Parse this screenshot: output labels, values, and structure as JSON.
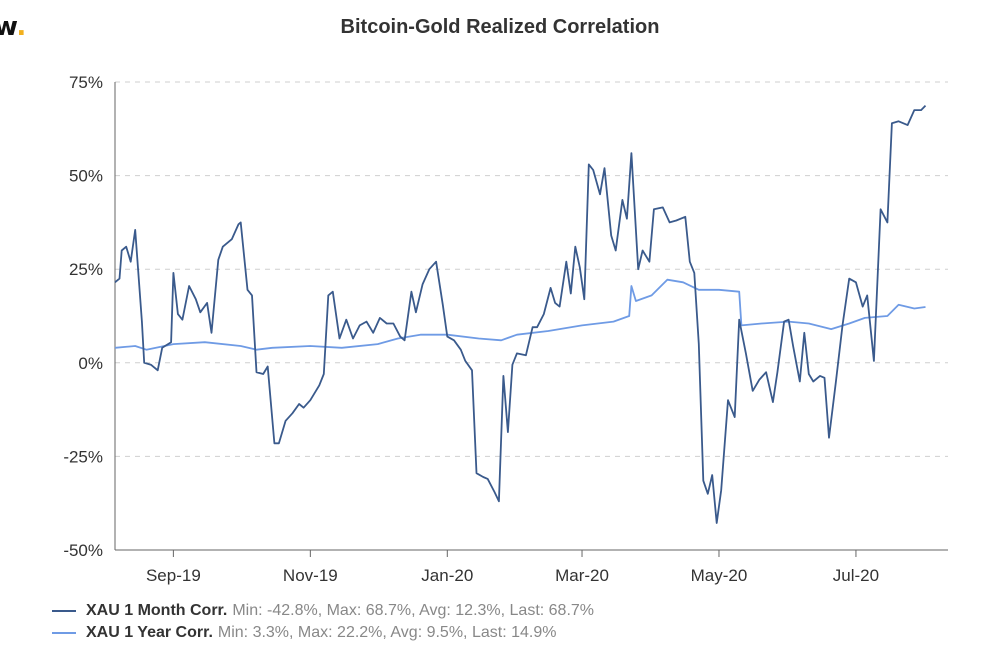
{
  "logo": {
    "text": "w",
    "dot": "."
  },
  "chart_data": {
    "type": "line",
    "title": "Bitcoin-Gold Realized Correlation",
    "ylim": [
      -50,
      75
    ],
    "y_ticks": [
      "75%",
      "50%",
      "25%",
      "0%",
      "-25%",
      "-50%"
    ],
    "y_tick_values": [
      75,
      50,
      25,
      0,
      -25,
      -50
    ],
    "x_range": [
      "2019-08-06",
      "2020-08-11"
    ],
    "x_ticks": [
      {
        "label": "Sep-19",
        "date": "2019-09-01"
      },
      {
        "label": "Nov-19",
        "date": "2019-11-01"
      },
      {
        "label": "Jan-20",
        "date": "2020-01-01"
      },
      {
        "label": "Mar-20",
        "date": "2020-03-01"
      },
      {
        "label": "May-20",
        "date": "2020-05-01"
      },
      {
        "label": "Jul-20",
        "date": "2020-07-01"
      }
    ],
    "grid": "horizontal dashed",
    "legend_position": "bottom-left",
    "series": [
      {
        "name": "XAU 1 Month Corr.",
        "stats": "Min: -42.8%, Max: 68.7%, Avg: 12.3%, Last: 68.7%",
        "color": "#3a5a8c",
        "points": [
          [
            "2019-08-06",
            21.5
          ],
          [
            "2019-08-08",
            22.5
          ],
          [
            "2019-08-09",
            30.0
          ],
          [
            "2019-08-11",
            31.0
          ],
          [
            "2019-08-13",
            27.0
          ],
          [
            "2019-08-15",
            35.5
          ],
          [
            "2019-08-18",
            11.0
          ],
          [
            "2019-08-19",
            0.0
          ],
          [
            "2019-08-22",
            -0.5
          ],
          [
            "2019-08-25",
            -2.0
          ],
          [
            "2019-08-27",
            4.0
          ],
          [
            "2019-08-31",
            5.5
          ],
          [
            "2019-09-01",
            24.0
          ],
          [
            "2019-09-03",
            13.0
          ],
          [
            "2019-09-05",
            11.5
          ],
          [
            "2019-09-08",
            20.5
          ],
          [
            "2019-09-11",
            17.0
          ],
          [
            "2019-09-13",
            13.5
          ],
          [
            "2019-09-16",
            16.0
          ],
          [
            "2019-09-18",
            8.0
          ],
          [
            "2019-09-21",
            27.5
          ],
          [
            "2019-09-23",
            31.0
          ],
          [
            "2019-09-27",
            33.0
          ],
          [
            "2019-09-30",
            37.0
          ],
          [
            "2019-10-01",
            37.5
          ],
          [
            "2019-10-04",
            19.5
          ],
          [
            "2019-10-06",
            18.0
          ],
          [
            "2019-10-08",
            -2.5
          ],
          [
            "2019-10-11",
            -3.0
          ],
          [
            "2019-10-13",
            -1.0
          ],
          [
            "2019-10-16",
            -21.5
          ],
          [
            "2019-10-18",
            -21.5
          ],
          [
            "2019-10-21",
            -15.5
          ],
          [
            "2019-10-24",
            -13.5
          ],
          [
            "2019-10-27",
            -11.0
          ],
          [
            "2019-10-29",
            -12.0
          ],
          [
            "2019-11-01",
            -10.0
          ],
          [
            "2019-11-05",
            -6.0
          ],
          [
            "2019-11-07",
            -3.0
          ],
          [
            "2019-11-09",
            18.0
          ],
          [
            "2019-11-11",
            19.0
          ],
          [
            "2019-11-14",
            6.5
          ],
          [
            "2019-11-17",
            11.5
          ],
          [
            "2019-11-20",
            6.5
          ],
          [
            "2019-11-23",
            10.0
          ],
          [
            "2019-11-26",
            11.0
          ],
          [
            "2019-11-29",
            8.0
          ],
          [
            "2019-12-02",
            12.0
          ],
          [
            "2019-12-05",
            10.5
          ],
          [
            "2019-12-08",
            10.5
          ],
          [
            "2019-12-11",
            7.0
          ],
          [
            "2019-12-13",
            6.0
          ],
          [
            "2019-12-16",
            19.0
          ],
          [
            "2019-12-18",
            13.5
          ],
          [
            "2019-12-21",
            21.0
          ],
          [
            "2019-12-24",
            25.0
          ],
          [
            "2019-12-27",
            27.0
          ],
          [
            "2019-12-30",
            15.5
          ],
          [
            "2020-01-01",
            7.0
          ],
          [
            "2020-01-04",
            6.0
          ],
          [
            "2020-01-07",
            3.5
          ],
          [
            "2020-01-09",
            0.5
          ],
          [
            "2020-01-12",
            -2.0
          ],
          [
            "2020-01-14",
            -29.5
          ],
          [
            "2020-01-17",
            -30.5
          ],
          [
            "2020-01-19",
            -31.0
          ],
          [
            "2020-01-22",
            -34.5
          ],
          [
            "2020-01-24",
            -37.0
          ],
          [
            "2020-01-26",
            -3.5
          ],
          [
            "2020-01-28",
            -18.5
          ],
          [
            "2020-01-30",
            -0.5
          ],
          [
            "2020-02-01",
            2.5
          ],
          [
            "2020-02-05",
            2.0
          ],
          [
            "2020-02-08",
            9.5
          ],
          [
            "2020-02-10",
            9.5
          ],
          [
            "2020-02-13",
            13.0
          ],
          [
            "2020-02-16",
            20.0
          ],
          [
            "2020-02-18",
            16.0
          ],
          [
            "2020-02-20",
            15.0
          ],
          [
            "2020-02-23",
            27.0
          ],
          [
            "2020-02-25",
            18.5
          ],
          [
            "2020-02-27",
            31.0
          ],
          [
            "2020-02-29",
            25.5
          ],
          [
            "2020-03-02",
            17.0
          ],
          [
            "2020-03-04",
            53.0
          ],
          [
            "2020-03-06",
            51.5
          ],
          [
            "2020-03-09",
            45.0
          ],
          [
            "2020-03-11",
            52.0
          ],
          [
            "2020-03-14",
            34.0
          ],
          [
            "2020-03-16",
            30.0
          ],
          [
            "2020-03-19",
            43.5
          ],
          [
            "2020-03-21",
            38.5
          ],
          [
            "2020-03-23",
            56.0
          ],
          [
            "2020-03-26",
            25.0
          ],
          [
            "2020-03-28",
            30.0
          ],
          [
            "2020-03-31",
            27.0
          ],
          [
            "2020-04-02",
            41.0
          ],
          [
            "2020-04-06",
            41.5
          ],
          [
            "2020-04-09",
            37.5
          ],
          [
            "2020-04-12",
            38.0
          ],
          [
            "2020-04-16",
            39.0
          ],
          [
            "2020-04-18",
            27.0
          ],
          [
            "2020-04-20",
            24.0
          ],
          [
            "2020-04-22",
            5.0
          ],
          [
            "2020-04-24",
            -31.5
          ],
          [
            "2020-04-26",
            -35.0
          ],
          [
            "2020-04-28",
            -30.0
          ],
          [
            "2020-04-30",
            -42.8
          ],
          [
            "2020-05-02",
            -34.0
          ],
          [
            "2020-05-05",
            -10.0
          ],
          [
            "2020-05-08",
            -14.5
          ],
          [
            "2020-05-10",
            11.5
          ],
          [
            "2020-05-13",
            2.5
          ],
          [
            "2020-05-16",
            -7.5
          ],
          [
            "2020-05-19",
            -4.5
          ],
          [
            "2020-05-22",
            -2.5
          ],
          [
            "2020-05-25",
            -10.5
          ],
          [
            "2020-05-27",
            -2.5
          ],
          [
            "2020-05-30",
            11.0
          ],
          [
            "2020-06-01",
            11.5
          ],
          [
            "2020-06-03",
            4.5
          ],
          [
            "2020-06-06",
            -5.0
          ],
          [
            "2020-06-08",
            8.0
          ],
          [
            "2020-06-10",
            -3.0
          ],
          [
            "2020-06-12",
            -5.0
          ],
          [
            "2020-06-15",
            -3.5
          ],
          [
            "2020-06-17",
            -4.0
          ],
          [
            "2020-06-19",
            -20.0
          ],
          [
            "2020-06-22",
            -5.5
          ],
          [
            "2020-06-25",
            10.0
          ],
          [
            "2020-06-28",
            22.5
          ],
          [
            "2020-07-01",
            21.5
          ],
          [
            "2020-07-04",
            15.0
          ],
          [
            "2020-07-06",
            18.0
          ],
          [
            "2020-07-09",
            0.5
          ],
          [
            "2020-07-12",
            41.0
          ],
          [
            "2020-07-15",
            37.5
          ],
          [
            "2020-07-17",
            64.0
          ],
          [
            "2020-07-20",
            64.5
          ],
          [
            "2020-07-24",
            63.5
          ],
          [
            "2020-07-27",
            67.5
          ],
          [
            "2020-07-30",
            67.5
          ],
          [
            "2020-08-01",
            68.7
          ]
        ]
      },
      {
        "name": "XAU 1 Year Corr.",
        "stats": "Min: 3.3%, Max: 22.2%, Avg: 9.5%, Last: 14.9%",
        "color": "#6f9be5",
        "points": [
          [
            "2019-08-06",
            4.0
          ],
          [
            "2019-08-15",
            4.5
          ],
          [
            "2019-08-20",
            3.5
          ],
          [
            "2019-09-01",
            5.0
          ],
          [
            "2019-09-15",
            5.5
          ],
          [
            "2019-10-01",
            4.5
          ],
          [
            "2019-10-08",
            3.5
          ],
          [
            "2019-10-15",
            4.0
          ],
          [
            "2019-11-01",
            4.5
          ],
          [
            "2019-11-15",
            4.0
          ],
          [
            "2019-12-01",
            5.0
          ],
          [
            "2019-12-10",
            6.5
          ],
          [
            "2019-12-20",
            7.5
          ],
          [
            "2020-01-01",
            7.5
          ],
          [
            "2020-01-15",
            6.5
          ],
          [
            "2020-01-25",
            6.0
          ],
          [
            "2020-02-01",
            7.5
          ],
          [
            "2020-02-15",
            8.5
          ],
          [
            "2020-03-01",
            10.0
          ],
          [
            "2020-03-15",
            11.0
          ],
          [
            "2020-03-22",
            12.5
          ],
          [
            "2020-03-23",
            20.5
          ],
          [
            "2020-03-25",
            16.5
          ],
          [
            "2020-04-01",
            18.0
          ],
          [
            "2020-04-08",
            22.2
          ],
          [
            "2020-04-15",
            21.5
          ],
          [
            "2020-04-22",
            19.5
          ],
          [
            "2020-05-01",
            19.5
          ],
          [
            "2020-05-10",
            19.0
          ],
          [
            "2020-05-11",
            10.0
          ],
          [
            "2020-05-20",
            10.5
          ],
          [
            "2020-06-01",
            11.0
          ],
          [
            "2020-06-10",
            10.5
          ],
          [
            "2020-06-20",
            9.0
          ],
          [
            "2020-06-28",
            10.5
          ],
          [
            "2020-07-05",
            12.0
          ],
          [
            "2020-07-15",
            12.5
          ],
          [
            "2020-07-20",
            15.5
          ],
          [
            "2020-07-27",
            14.5
          ],
          [
            "2020-08-01",
            14.9
          ]
        ]
      }
    ]
  }
}
